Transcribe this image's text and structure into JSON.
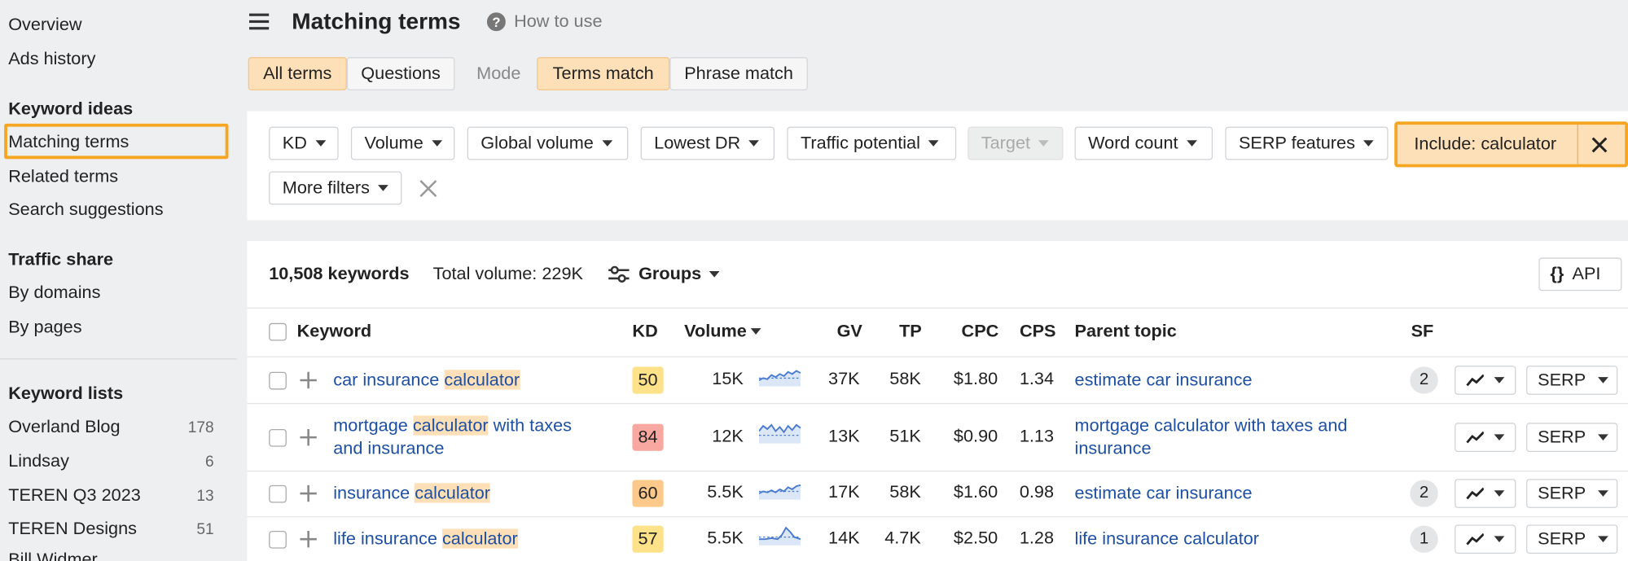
{
  "sidebar": {
    "links": [
      "Overview",
      "Ads history"
    ],
    "sections": [
      {
        "title": "Keyword ideas",
        "items": [
          {
            "label": "Matching terms"
          },
          {
            "label": "Related terms"
          },
          {
            "label": "Search suggestions"
          }
        ]
      },
      {
        "title": "Traffic share",
        "items": [
          {
            "label": "By domains"
          },
          {
            "label": "By pages"
          }
        ]
      },
      {
        "title": "Keyword lists",
        "items": [
          {
            "label": "Overland Blog",
            "count": 178
          },
          {
            "label": "Lindsay",
            "count": 6
          },
          {
            "label": "TEREN Q3 2023",
            "count": 13
          },
          {
            "label": "TEREN Designs",
            "count": 51
          },
          {
            "label": "Bill Widmer"
          }
        ]
      }
    ]
  },
  "header": {
    "title": "Matching terms",
    "help": "How to use"
  },
  "tabs": {
    "terms": [
      "All terms",
      "Questions"
    ],
    "mode_label": "Mode",
    "modes": [
      "Terms match",
      "Phrase match"
    ]
  },
  "filters": {
    "buttons": [
      "KD",
      "Volume",
      "Global volume",
      "Lowest DR",
      "Traffic potential",
      "Target",
      "Word count",
      "SERP features"
    ],
    "include": "Include: calculator",
    "more": "More filters"
  },
  "summary": {
    "keywords": "10,508 keywords",
    "total_volume": "Total volume: 229K",
    "groups": "Groups",
    "api": "API"
  },
  "table": {
    "columns": [
      "Keyword",
      "KD",
      "Volume",
      "GV",
      "TP",
      "CPC",
      "CPS",
      "Parent topic",
      "SF"
    ],
    "serp_label": "SERP",
    "rows": [
      {
        "keyword": {
          "before": "car insurance ",
          "match": "calculator"
        },
        "kd": 50,
        "kd_color": "#fde28a",
        "volume": "15K",
        "gv": "37K",
        "tp": "58K",
        "cpc": "$1.80",
        "cps": "1.34",
        "parent_topic": "estimate car insurance",
        "sf": 2
      },
      {
        "keyword": {
          "before": "mortgage ",
          "match": "calculator",
          "after": " with taxes and insurance"
        },
        "kd": 84,
        "kd_color": "#f8a8a0",
        "volume": "12K",
        "gv": "13K",
        "tp": "51K",
        "cpc": "$0.90",
        "cps": "1.13",
        "parent_topic": "mortgage calculator with taxes and insurance"
      },
      {
        "keyword": {
          "before": "insurance ",
          "match": "calculator"
        },
        "kd": 60,
        "kd_color": "#fcc98a",
        "volume": "5.5K",
        "gv": "17K",
        "tp": "58K",
        "cpc": "$1.60",
        "cps": "0.98",
        "parent_topic": "estimate car insurance",
        "sf": 2
      },
      {
        "keyword": {
          "before": "life insurance ",
          "match": "calculator"
        },
        "kd": 57,
        "kd_color": "#fde28a",
        "volume": "5.5K",
        "gv": "14K",
        "tp": "4.7K",
        "cpc": "$2.50",
        "cps": "1.28",
        "parent_topic": "life insurance calculator",
        "sf": 1
      }
    ]
  }
}
